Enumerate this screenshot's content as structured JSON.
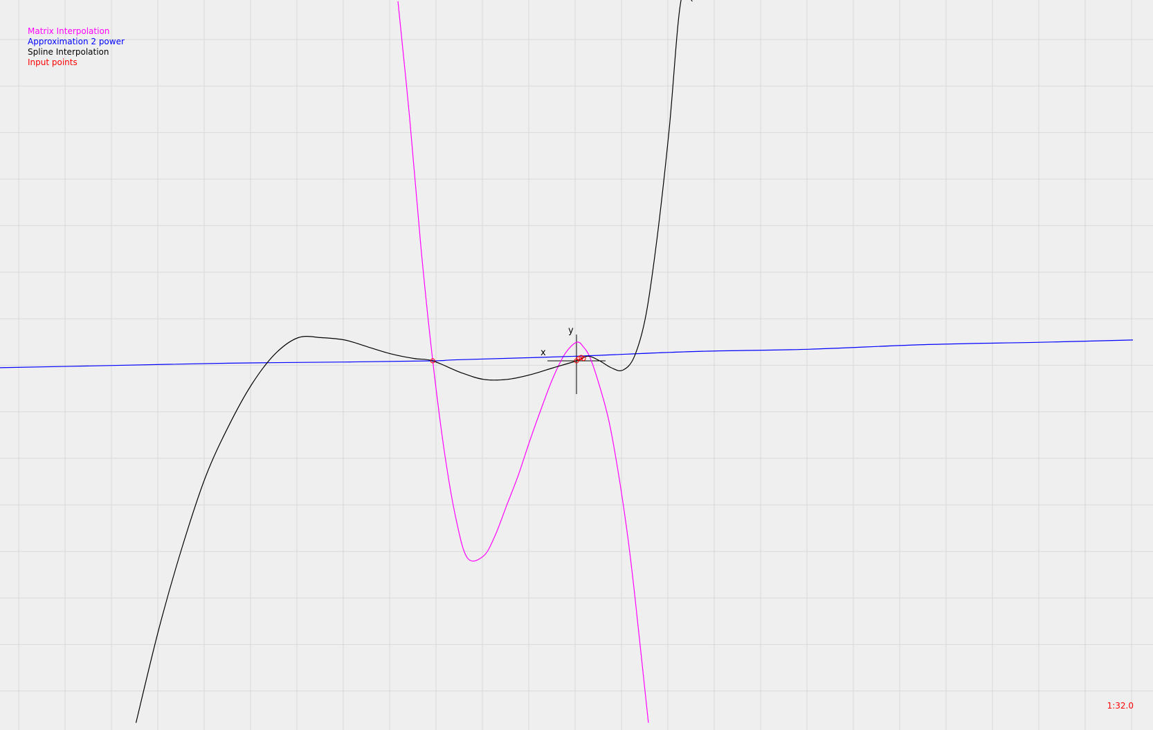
{
  "legend": {
    "items": [
      {
        "label": "Matrix Interpolation",
        "color": "#ff00ff"
      },
      {
        "label": "Approximation 2 power",
        "color": "#0000ff"
      },
      {
        "label": "Spline Interpolation",
        "color": "#000000"
      },
      {
        "label": "Input points",
        "color": "#ff0000"
      }
    ]
  },
  "scale_label": "1:32.0",
  "chart_data": {
    "type": "line",
    "x_axis_label": "x",
    "y_axis_label": "y",
    "grid": true,
    "scale": "1:32.0",
    "x_range": [
      -25,
      24
    ],
    "y_range": [
      -15.6,
      15.5
    ],
    "input_points": [
      {
        "x": -6.2,
        "y": 0.0
      },
      {
        "x": 0.0,
        "y": 0.0
      },
      {
        "x": 0.1,
        "y": 0.1
      },
      {
        "x": 0.2,
        "y": 0.15
      },
      {
        "x": 0.3,
        "y": 0.1
      }
    ],
    "series": [
      {
        "name": "Matrix Interpolation",
        "color": "#ff00ff",
        "x": [
          -7.7,
          -7.2,
          -6.7,
          -6.2,
          -5.7,
          -5.2,
          -4.7,
          -4.0,
          -3.5,
          -3.0,
          -2.5,
          -2.0,
          -1.5,
          -1.0,
          -0.5,
          0.0,
          0.3,
          0.6,
          1.0,
          1.4,
          1.8,
          2.2,
          2.5,
          3.1
        ],
        "y": [
          15.5,
          10.5,
          4.8,
          0.0,
          -3.9,
          -6.8,
          -8.5,
          -8.4,
          -7.5,
          -6.2,
          -4.9,
          -3.4,
          -2.0,
          -0.7,
          0.3,
          0.8,
          0.6,
          0.1,
          -1.1,
          -2.6,
          -4.8,
          -7.5,
          -10.0,
          -15.6
        ]
      },
      {
        "name": "Approximation 2 power",
        "color": "#0000ff",
        "x": [
          -25.0,
          -20.0,
          -15.0,
          -10.0,
          -6.2,
          -5.0,
          0.0,
          5.0,
          10.0,
          15.0,
          20.0,
          24.0
        ],
        "y": [
          -0.3,
          -0.2,
          -0.1,
          -0.05,
          0.0,
          0.05,
          0.2,
          0.4,
          0.5,
          0.7,
          0.8,
          0.9
        ]
      },
      {
        "name": "Spline Interpolation",
        "color": "#000000",
        "x": [
          -19.0,
          -18.0,
          -17.0,
          -16.0,
          -15.0,
          -14.0,
          -13.0,
          -12.0,
          -11.0,
          -10.0,
          -9.0,
          -8.0,
          -7.0,
          -6.2,
          -5.0,
          -4.0,
          -3.0,
          -2.0,
          -1.0,
          0.0,
          0.5,
          1.0,
          1.5,
          2.0,
          2.5,
          3.0,
          3.5,
          4.0,
          4.5,
          5.0
        ],
        "y": [
          -15.6,
          -11.5,
          -8.0,
          -5.0,
          -2.8,
          -1.0,
          0.3,
          1.0,
          1.0,
          0.9,
          0.6,
          0.3,
          0.1,
          0.0,
          -0.5,
          -0.8,
          -0.8,
          -0.6,
          -0.3,
          0.0,
          0.2,
          0.0,
          -0.3,
          -0.4,
          0.2,
          2.0,
          5.5,
          10.0,
          15.5,
          15.5
        ]
      }
    ]
  }
}
